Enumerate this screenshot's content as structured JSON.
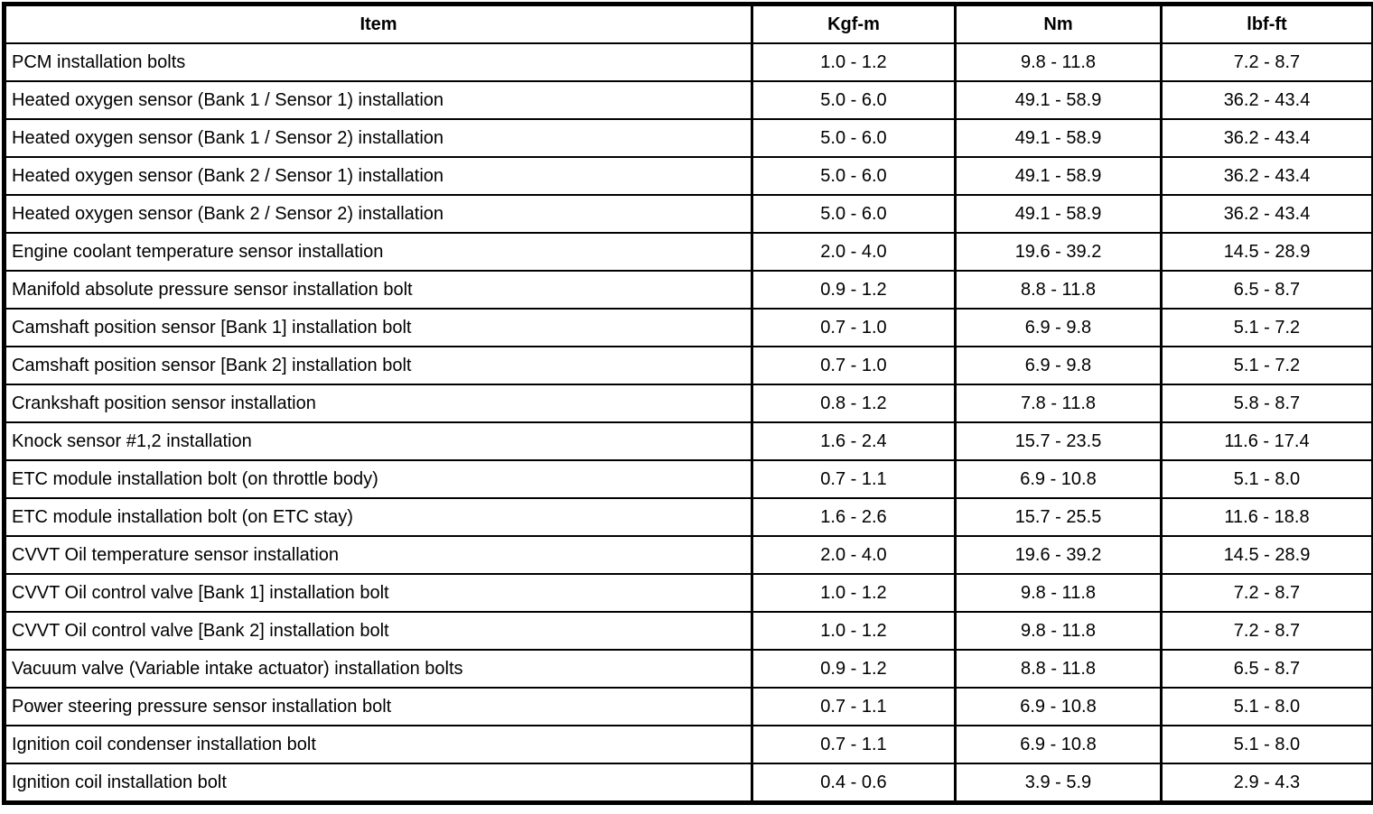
{
  "table": {
    "headers": [
      "Item",
      "Kgf-m",
      "Nm",
      "lbf-ft"
    ],
    "rows": [
      [
        "PCM installation bolts",
        "1.0 - 1.2",
        "9.8 - 11.8",
        "7.2 - 8.7"
      ],
      [
        "Heated oxygen sensor (Bank 1 / Sensor 1) installation",
        "5.0 - 6.0",
        "49.1 - 58.9",
        "36.2 - 43.4"
      ],
      [
        "Heated oxygen sensor (Bank 1 / Sensor 2) installation",
        "5.0 - 6.0",
        "49.1 - 58.9",
        "36.2 - 43.4"
      ],
      [
        "Heated oxygen sensor (Bank 2 / Sensor 1) installation",
        "5.0 - 6.0",
        "49.1 - 58.9",
        "36.2 - 43.4"
      ],
      [
        "Heated oxygen sensor (Bank 2 / Sensor 2) installation",
        "5.0 - 6.0",
        "49.1 - 58.9",
        "36.2 - 43.4"
      ],
      [
        "Engine coolant temperature sensor installation",
        "2.0 - 4.0",
        "19.6 - 39.2",
        "14.5 - 28.9"
      ],
      [
        "Manifold absolute pressure sensor installation bolt",
        "0.9 - 1.2",
        "8.8 - 11.8",
        "6.5 - 8.7"
      ],
      [
        "Camshaft position sensor [Bank 1] installation bolt",
        "0.7 - 1.0",
        "6.9 - 9.8",
        "5.1 - 7.2"
      ],
      [
        "Camshaft position sensor [Bank 2] installation bolt",
        "0.7 - 1.0",
        "6.9 - 9.8",
        "5.1 - 7.2"
      ],
      [
        "Crankshaft position sensor installation",
        "0.8 - 1.2",
        "7.8 - 11.8",
        "5.8 - 8.7"
      ],
      [
        "Knock sensor #1,2 installation",
        "1.6 - 2.4",
        "15.7 - 23.5",
        "11.6 - 17.4"
      ],
      [
        "ETC module installation bolt (on throttle body)",
        "0.7 - 1.1",
        "6.9 - 10.8",
        "5.1 - 8.0"
      ],
      [
        "ETC module installation bolt (on ETC stay)",
        "1.6 - 2.6",
        "15.7 - 25.5",
        "11.6 - 18.8"
      ],
      [
        "CVVT Oil temperature sensor installation",
        "2.0 - 4.0",
        "19.6 - 39.2",
        "14.5 - 28.9"
      ],
      [
        "CVVT Oil control valve [Bank 1] installation bolt",
        "1.0 - 1.2",
        "9.8 - 11.8",
        "7.2 - 8.7"
      ],
      [
        "CVVT Oil control valve [Bank 2] installation bolt",
        "1.0 - 1.2",
        "9.8 - 11.8",
        "7.2 - 8.7"
      ],
      [
        "Vacuum valve (Variable intake actuator) installation bolts",
        "0.9 - 1.2",
        "8.8 - 11.8",
        "6.5 - 8.7"
      ],
      [
        "Power steering pressure sensor installation bolt",
        "0.7 - 1.1",
        "6.9 - 10.8",
        "5.1 - 8.0"
      ],
      [
        "Ignition coil condenser installation bolt",
        "0.7 - 1.1",
        "6.9 - 10.8",
        "5.1 - 8.0"
      ],
      [
        "Ignition coil installation bolt",
        "0.4 - 0.6",
        "3.9 - 5.9",
        "2.9 - 4.3"
      ]
    ],
    "border_color": "#000000",
    "background_color": "#ffffff"
  }
}
